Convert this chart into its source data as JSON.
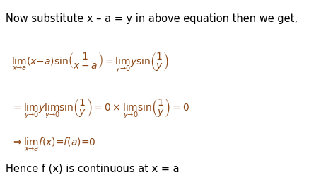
{
  "bg_color": "#ffffff",
  "text_color": "#000000",
  "math_color": "#8B4513",
  "figsize": [
    4.37,
    2.55
  ],
  "dpi": 100,
  "line1": "Now substitute x – a = y in above equation then we get,",
  "line2_lhs": "$\\lim_{x \\to a} (x - a) \\sin\\!\\left(\\dfrac{1}{x - a}\\right) = \\lim_{y \\to 0} y\\sin\\!\\left(\\dfrac{1}{y}\\right)$",
  "line3": "$= \\lim_{y \\to 0} y \\lim_{y \\to 0} \\sin\\!\\left(\\dfrac{1}{y}\\right) = 0 \\times \\lim_{y \\to 0} \\sin\\!\\left(\\dfrac{1}{y}\\right) = 0$",
  "line4": "$\\Rightarrow \\lim_{x \\to a} f(x) = f(a) = 0$",
  "line5": "Hence f (x) is continuous at x = a"
}
